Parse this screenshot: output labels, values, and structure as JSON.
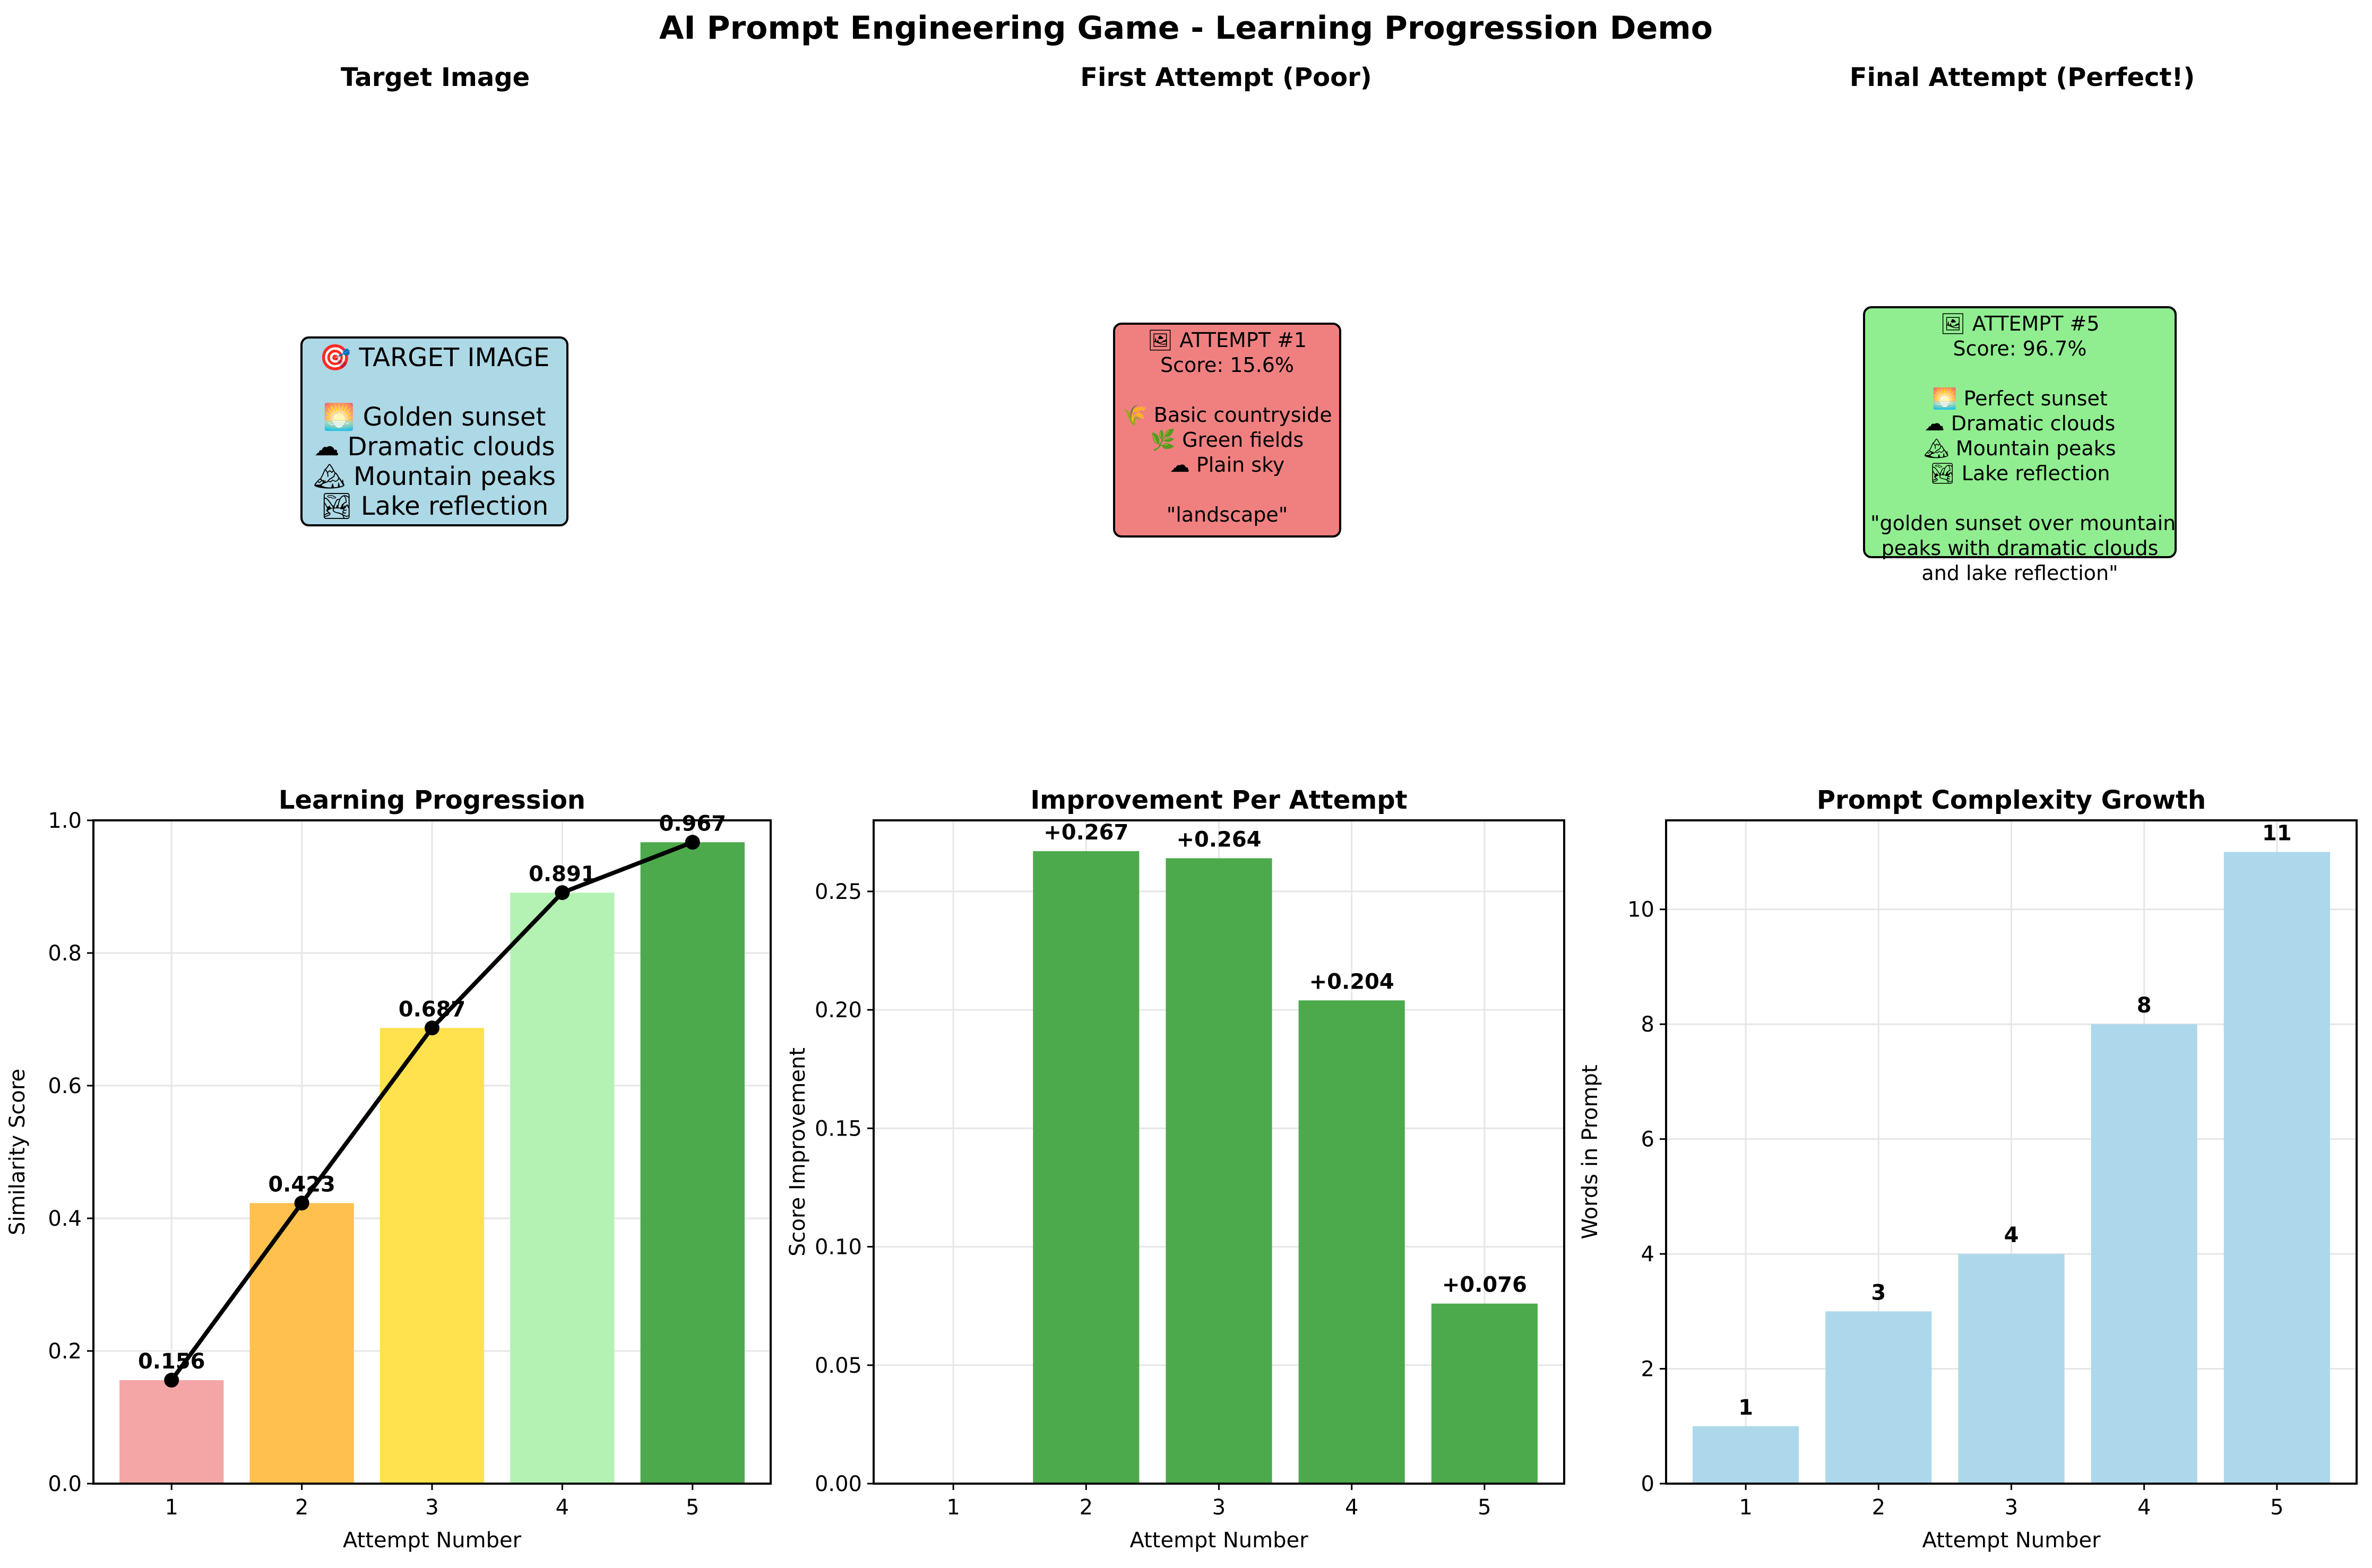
{
  "suptitle": "AI Prompt Engineering Game - Learning Progression Demo",
  "panels": {
    "target": {
      "title": "Target Image",
      "text": "🎯 TARGET IMAGE\n\n🌅 Golden sunset\n☁ Dramatic clouds\n🏔 Mountain peaks\n🏞 Lake reflection",
      "bg": "#add8e6"
    },
    "first": {
      "title": "First Attempt (Poor)",
      "text": "🖼 ATTEMPT #1\nScore: 15.6%\n\n🌾 Basic countryside\n🌿 Green fields\n☁ Plain sky\n\n\"landscape\"",
      "bg": "#f08080"
    },
    "final": {
      "title": "Final Attempt (Perfect!)",
      "text": "🖼 ATTEMPT #5\nScore: 96.7%\n\n🌅 Perfect sunset\n☁ Dramatic clouds\n🏔 Mountain peaks\n🏞 Lake reflection\n\n\"golden sunset over mountain\npeaks with dramatic clouds\nand lake reflection\"",
      "bg": "#90ee90"
    }
  },
  "chart_data": [
    {
      "type": "bar",
      "title": "Learning Progression",
      "xlabel": "Attempt Number",
      "ylabel": "Similarity Score",
      "categories": [
        "1",
        "2",
        "3",
        "4",
        "5"
      ],
      "values": [
        0.156,
        0.423,
        0.687,
        0.891,
        0.967
      ],
      "labels": [
        "0.156",
        "0.423",
        "0.687",
        "0.891",
        "0.967"
      ],
      "colors": [
        "#f4a6a6",
        "#ffc04d",
        "#ffe24d",
        "#b3f2b3",
        "#4caa4c"
      ],
      "overlay_line": true,
      "ylim": [
        0,
        1.0
      ],
      "yticks": [
        "0.0",
        "0.2",
        "0.4",
        "0.6",
        "0.8",
        "1.0"
      ],
      "grid": true
    },
    {
      "type": "bar",
      "title": "Improvement Per Attempt",
      "xlabel": "Attempt Number",
      "ylabel": "Score Improvement",
      "categories": [
        "1",
        "2",
        "3",
        "4",
        "5"
      ],
      "values": [
        0,
        0.267,
        0.264,
        0.204,
        0.076
      ],
      "labels": [
        "",
        "+0.267",
        "+0.264",
        "+0.204",
        "+0.076"
      ],
      "colors": [
        "#4caa4c",
        "#4caa4c",
        "#4caa4c",
        "#4caa4c",
        "#4caa4c"
      ],
      "ylim": [
        0,
        0.28
      ],
      "yticks": [
        "0.00",
        "0.05",
        "0.10",
        "0.15",
        "0.20",
        "0.25"
      ],
      "grid": true
    },
    {
      "type": "bar",
      "title": "Prompt Complexity Growth",
      "xlabel": "Attempt Number",
      "ylabel": "Words in Prompt",
      "categories": [
        "1",
        "2",
        "3",
        "4",
        "5"
      ],
      "values": [
        1,
        3,
        4,
        8,
        11
      ],
      "labels": [
        "1",
        "3",
        "4",
        "8",
        "11"
      ],
      "colors": [
        "#add8eb",
        "#add8eb",
        "#add8eb",
        "#add8eb",
        "#add8eb"
      ],
      "ylim": [
        0,
        11.55
      ],
      "yticks": [
        "0",
        "2",
        "4",
        "6",
        "8",
        "10"
      ],
      "grid": true
    }
  ]
}
